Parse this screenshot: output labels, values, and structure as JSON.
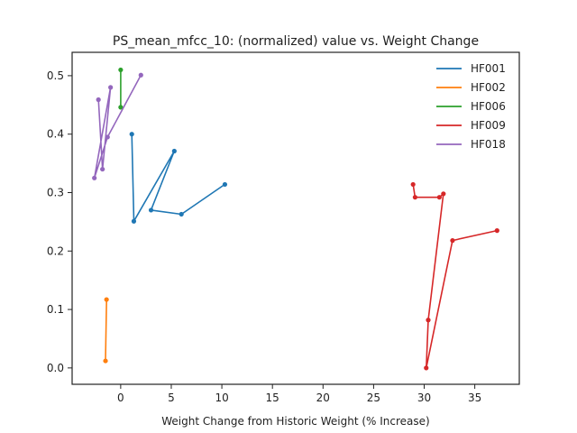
{
  "chart_data": {
    "type": "line",
    "title": "PS_mean_mfcc_10: (normalized) value vs. Weight Change",
    "xlabel": "Weight Change from Historic Weight (% Increase)",
    "ylabel": "",
    "xlim": [
      -4.8,
      39.4
    ],
    "ylim": [
      -0.028,
      0.54
    ],
    "xticks": [
      0,
      5,
      10,
      15,
      20,
      25,
      30,
      35
    ],
    "yticks": [
      0.0,
      0.1,
      0.2,
      0.3,
      0.4,
      0.5
    ],
    "ytick_labels": [
      "0.0",
      "0.1",
      "0.2",
      "0.3",
      "0.4",
      "0.5"
    ],
    "grid": false,
    "legend": "top-right",
    "markers": true,
    "series": [
      {
        "name": "HF001",
        "color": "#1f77b4",
        "x": [
          1.1,
          1.3,
          5.3,
          3.0,
          6.0,
          10.3
        ],
        "y": [
          0.4,
          0.251,
          0.371,
          0.27,
          0.263,
          0.314
        ]
      },
      {
        "name": "HF002",
        "color": "#ff7f0e",
        "x": [
          -1.4,
          -1.5
        ],
        "y": [
          0.117,
          0.012
        ]
      },
      {
        "name": "HF006",
        "color": "#2ca02c",
        "x": [
          0.0,
          0.0
        ],
        "y": [
          0.51,
          0.446
        ]
      },
      {
        "name": "HF009",
        "color": "#d62728",
        "x": [
          28.9,
          29.1,
          31.5,
          31.9,
          30.4,
          30.2,
          32.8,
          37.2
        ],
        "y": [
          0.314,
          0.292,
          0.292,
          0.298,
          0.082,
          0.0,
          0.218,
          0.235
        ]
      },
      {
        "name": "HF018",
        "color": "#9467bd",
        "x": [
          2.0,
          -1.3,
          -2.6,
          -1.0,
          -1.8,
          -2.2
        ],
        "y": [
          0.501,
          0.395,
          0.325,
          0.48,
          0.34,
          0.459
        ]
      }
    ]
  }
}
